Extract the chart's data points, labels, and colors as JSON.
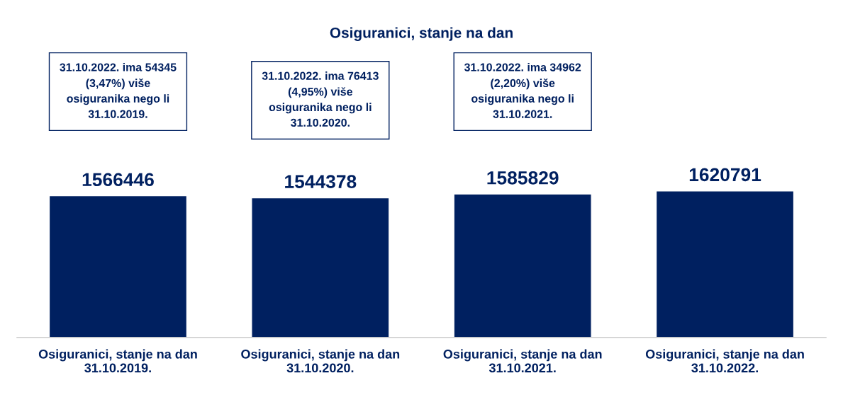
{
  "chart_data": {
    "type": "bar",
    "title": "Osiguranici, stanje na dan",
    "categories": [
      "Osiguranici, stanje na dan\n31.10.2019.",
      "Osiguranici, stanje na dan\n31.10.2020.",
      "Osiguranici, stanje na dan\n31.10.2021.",
      "Osiguranici, stanje na dan\n31.10.2022."
    ],
    "values": [
      1566446,
      1544378,
      1585829,
      1620791
    ],
    "color": "#002060",
    "data_labels": true,
    "tick_labels": "x",
    "grid": false,
    "annotations": [
      "31.10.2022. ima 54345\n(3,47%) više\nosiguranika nego li\n31.10.2019.",
      "31.10.2022. ima 76413\n(4,95%) više\nosiguranika nego li\n31.10.2020.",
      "31.10.2022. ima 34962\n(2,20%) više\nosiguranika nego li\n31.10.2021."
    ]
  }
}
